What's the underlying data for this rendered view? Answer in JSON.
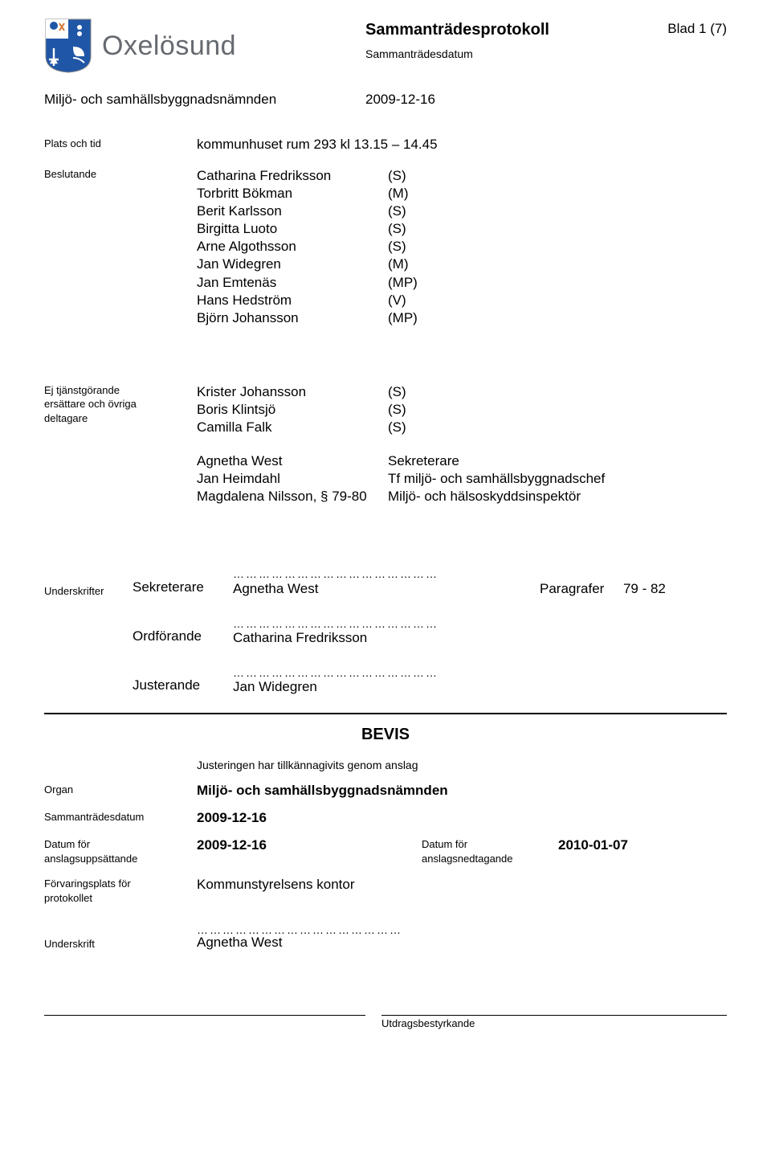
{
  "header": {
    "logo_text": "Oxelösund",
    "doc_title": "Sammanträdesprotokoll",
    "doc_sub": "Sammanträdesdatum",
    "page_label": "Blad 1 (7)",
    "committee": "Miljö- och samhällsbyggnadsnämnden",
    "meeting_date": "2009-12-16",
    "crest_colors": {
      "blue": "#2056a6",
      "white": "#ffffff",
      "orange": "#d57432",
      "gray": "#9aa0a6"
    }
  },
  "place_time": {
    "label": "Plats och tid",
    "value": "kommunhuset rum 293 kl 13.15 – 14.45"
  },
  "decision_makers": {
    "label": "Beslutande",
    "rows": [
      {
        "name": "Catharina Fredriksson",
        "party": "(S)"
      },
      {
        "name": "Torbritt Bökman",
        "party": "(M)"
      },
      {
        "name": "Berit Karlsson",
        "party": "(S)"
      },
      {
        "name": "Birgitta Luoto",
        "party": "(S)"
      },
      {
        "name": "Arne Algothsson",
        "party": "(S)"
      },
      {
        "name": "Jan Widegren",
        "party": "(M)"
      },
      {
        "name": "Jan Emtenäs",
        "party": "(MP)"
      },
      {
        "name": "Hans Hedström",
        "party": "(V)"
      },
      {
        "name": "Björn Johansson",
        "party": "(MP)"
      }
    ]
  },
  "others": {
    "label_line1": "Ej tjänstgörande",
    "label_line2": "ersättare och övriga",
    "label_line3": "deltagare",
    "rows": [
      {
        "name": "Krister Johansson",
        "party": "(S)"
      },
      {
        "name": "Boris Klintsjö",
        "party": "(S)"
      },
      {
        "name": "Camilla Falk",
        "party": "(S)"
      }
    ],
    "staff": [
      {
        "name": "Agnetha West",
        "role": "Sekreterare"
      },
      {
        "name": "Jan Heimdahl",
        "role": "Tf miljö- och samhällsbyggnadschef"
      },
      {
        "name": "Magdalena Nilsson, § 79-80",
        "role": "Miljö- och hälsoskyddsinspektör"
      }
    ]
  },
  "signatures": {
    "label": "Underskrifter",
    "sek": {
      "role": "Sekreterare",
      "name": "Agnetha West",
      "para_label": "Paragrafer",
      "para_range": "79 - 82"
    },
    "ordf": {
      "role": "Ordförande",
      "name": "Catharina Fredriksson"
    },
    "just": {
      "role": "Justerande",
      "name": "Jan Widegren"
    },
    "dots": "…………………………………………"
  },
  "bevis": {
    "title": "BEVIS",
    "just_text": "Justeringen har tillkännagivits genom anslag",
    "organ_label": "Organ",
    "organ_value": "Miljö- och samhällsbyggnadsnämnden",
    "date_label": "Sammanträdesdatum",
    "date_value": "2009-12-16",
    "posted_label1": "Datum för",
    "posted_label2": "anslagsuppsättande",
    "posted_value": "2009-12-16",
    "taken_label1": "Datum för",
    "taken_label2": "anslagsnedtagande",
    "taken_value": "2010-01-07",
    "storage_label1": "Förvaringsplats för",
    "storage_label2": "protokollet",
    "storage_value": "Kommunstyrelsens kontor",
    "undersk_label": "Underskrift",
    "undersk_name": "Agnetha West",
    "dots": "…………………………………………"
  },
  "footer": {
    "left": "",
    "right": "Utdragsbestyrkande"
  }
}
